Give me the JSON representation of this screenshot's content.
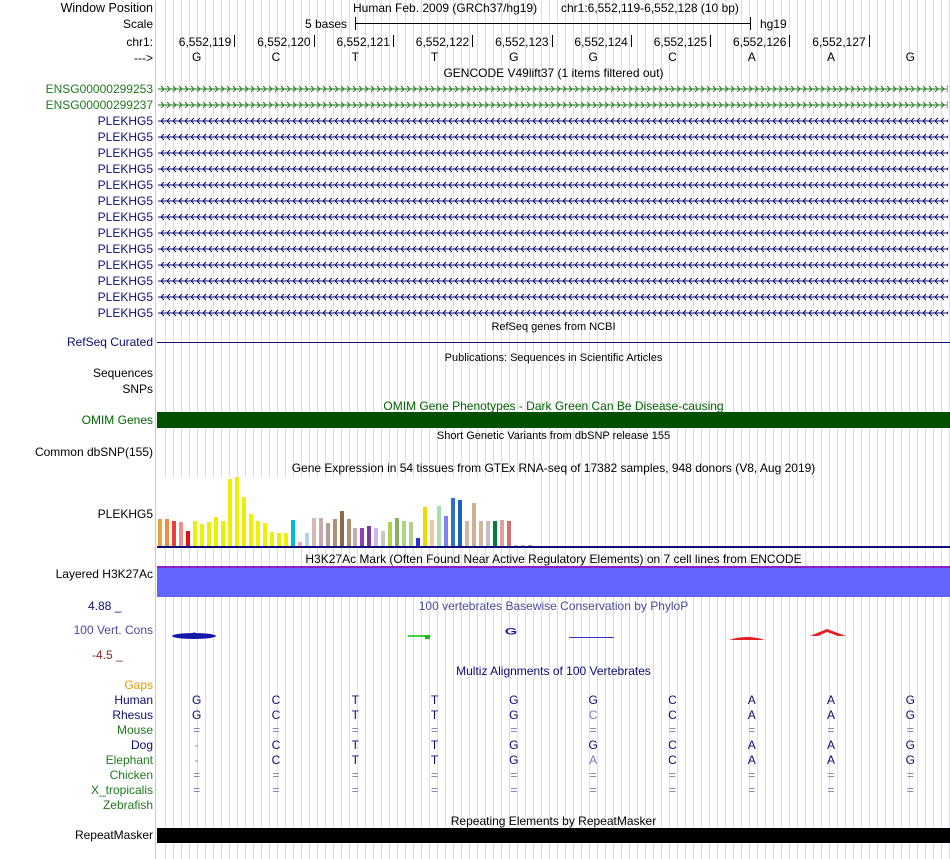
{
  "header": {
    "window_position_label": "Window Position",
    "scale_label": "Scale",
    "chrom_label": "chr1:",
    "strand_label": "--->",
    "assembly_text": "Human Feb. 2009 (GRCh37/hg19)",
    "position_text": "chr1:6,552,119-6,552,128 (10 bp)",
    "scale_text": "5 bases",
    "db": "hg19"
  },
  "ruler": {
    "positions": [
      "6,552,119",
      "6,552,120",
      "6,552,121",
      "6,552,122",
      "6,552,123",
      "6,552,124",
      "6,552,125",
      "6,552,126",
      "6,552,127"
    ],
    "bases": [
      "G",
      "C",
      "T",
      "T",
      "G",
      "G",
      "C",
      "A",
      "A",
      "G"
    ]
  },
  "gencode": {
    "title": "GENCODE V49lift37 (1 items filtered out)",
    "forward_genes": [
      "ENSG00000299253",
      "ENSG00000299237"
    ],
    "reverse_genes": [
      "PLEKHG5",
      "PLEKHG5",
      "PLEKHG5",
      "PLEKHG5",
      "PLEKHG5",
      "PLEKHG5",
      "PLEKHG5",
      "PLEKHG5",
      "PLEKHG5",
      "PLEKHG5",
      "PLEKHG5",
      "PLEKHG5",
      "PLEKHG5"
    ],
    "forward_color": "#1e7b1e",
    "reverse_color": "#0c0c78"
  },
  "refseq": {
    "title": "RefSeq genes from NCBI",
    "label": "RefSeq Curated"
  },
  "publications": {
    "title": "Publications: Sequences in Scientific Articles",
    "labels": [
      "Sequences",
      "SNPs"
    ]
  },
  "omim": {
    "title": "OMIM Gene Phenotypes - Dark Green Can Be Disease-causing",
    "label": "OMIM Genes",
    "color": "#005000"
  },
  "dbsnp": {
    "title": "Short Genetic Variants from dbSNP release 155",
    "label": "Common dbSNP(155)"
  },
  "gtex": {
    "title": "Gene Expression in 54 tissues from GTEx RNA-seq of 17382 samples, 948 donors (V8, Aug 2019)",
    "label": "PLEKHG5",
    "bars": [
      {
        "v": 0.38,
        "c": "#f2a23a"
      },
      {
        "v": 0.38,
        "c": "#f58b3c"
      },
      {
        "v": 0.36,
        "c": "#e8413a"
      },
      {
        "v": 0.34,
        "c": "#f28d8d"
      },
      {
        "v": 0.22,
        "c": "#e01010"
      },
      {
        "v": 0.35,
        "c": "#eeee00"
      },
      {
        "v": 0.31,
        "c": "#eeee00"
      },
      {
        "v": 0.34,
        "c": "#eeee00"
      },
      {
        "v": 0.42,
        "c": "#eeee00"
      },
      {
        "v": 0.36,
        "c": "#eeee00"
      },
      {
        "v": 0.95,
        "c": "#eeee00"
      },
      {
        "v": 0.98,
        "c": "#eeee00"
      },
      {
        "v": 0.7,
        "c": "#eeee00"
      },
      {
        "v": 0.46,
        "c": "#eeee00"
      },
      {
        "v": 0.36,
        "c": "#eeee00"
      },
      {
        "v": 0.33,
        "c": "#eeee00"
      },
      {
        "v": 0.2,
        "c": "#eeee00"
      },
      {
        "v": 0.19,
        "c": "#eeee00"
      },
      {
        "v": 0.18,
        "c": "#eeee00"
      },
      {
        "v": 0.37,
        "c": "#00bcd4"
      },
      {
        "v": 0.06,
        "c": "#f2a0cc"
      },
      {
        "v": 0.18,
        "c": "#b0d4f0"
      },
      {
        "v": 0.4,
        "c": "#d8b8b0"
      },
      {
        "v": 0.4,
        "c": "#c8a8b0"
      },
      {
        "v": 0.33,
        "c": "#b0a08c"
      },
      {
        "v": 0.39,
        "c": "#b09070"
      },
      {
        "v": 0.5,
        "c": "#8c6a4a"
      },
      {
        "v": 0.39,
        "c": "#b09070"
      },
      {
        "v": 0.25,
        "c": "#c8a8b0"
      },
      {
        "v": 0.26,
        "c": "#9040b0"
      },
      {
        "v": 0.28,
        "c": "#7a3a9a"
      },
      {
        "v": 0.26,
        "c": "#c8b8e8"
      },
      {
        "v": 0.22,
        "c": "#c8c8c8"
      },
      {
        "v": 0.34,
        "c": "#b0d050"
      },
      {
        "v": 0.4,
        "c": "#88b060"
      },
      {
        "v": 0.36,
        "c": "#a8d880"
      },
      {
        "v": 0.34,
        "c": "#b0d090"
      },
      {
        "v": 0.12,
        "c": "#3030e0"
      },
      {
        "v": 0.56,
        "c": "#f0d800"
      },
      {
        "v": 0.37,
        "c": "#f0c8a8"
      },
      {
        "v": 0.57,
        "c": "#a8e0a8"
      },
      {
        "v": 0.43,
        "c": "#8080f0"
      },
      {
        "v": 0.68,
        "c": "#3070d0"
      },
      {
        "v": 0.66,
        "c": "#2060c0"
      },
      {
        "v": 0.36,
        "c": "#d0b8a0"
      },
      {
        "v": 0.62,
        "c": "#d0b090"
      },
      {
        "v": 0.35,
        "c": "#d0b8a0"
      },
      {
        "v": 0.36,
        "c": "#c0c0c0"
      },
      {
        "v": 0.36,
        "c": "#008040"
      },
      {
        "v": 0.37,
        "c": "#e0a0a0"
      },
      {
        "v": 0.36,
        "c": "#d07070"
      },
      {
        "v": 0.02,
        "c": "#b0d090"
      },
      {
        "v": 0.01,
        "c": "#d0b090"
      },
      {
        "v": 0.01,
        "c": "#a0a0a0"
      }
    ]
  },
  "h3k27ac": {
    "title": "H3K27Ac Mark (Often Found Near Active Regulatory Elements) on 7 cell lines from ENCODE",
    "label": "Layered H3K27Ac",
    "color": "#6464ff"
  },
  "phylop": {
    "title": "100 vertebrates Basewise Conservation by PhyloP",
    "label": "100 Vert. Cons",
    "max_label": "4.88 _",
    "min_label": "-4.5 _"
  },
  "multiz": {
    "title": "Multiz Alignments of 100 Vertebrates",
    "gaps_label": "Gaps",
    "species": [
      {
        "name": "Human",
        "color": "#0c0c78",
        "seq": [
          "G",
          "C",
          "T",
          "T",
          "G",
          "G",
          "C",
          "A",
          "A",
          "G"
        ]
      },
      {
        "name": "Rhesus",
        "color": "#0c0c78",
        "seq": [
          "G",
          "C",
          "T",
          "T",
          "G",
          "C",
          "C",
          "A",
          "A",
          "G"
        ]
      },
      {
        "name": "Mouse",
        "color": "#1e7b1e",
        "seq": [
          "=",
          "=",
          "=",
          "=",
          "=",
          "=",
          "=",
          "=",
          "=",
          "="
        ]
      },
      {
        "name": "Dog",
        "color": "#0c0c78",
        "seq": [
          "-",
          "C",
          "T",
          "T",
          "G",
          "G",
          "C",
          "A",
          "A",
          "G"
        ]
      },
      {
        "name": "Elephant",
        "color": "#1e7b1e",
        "seq": [
          "-",
          "C",
          "T",
          "T",
          "G",
          "A",
          "C",
          "A",
          "A",
          "G"
        ]
      },
      {
        "name": "Chicken",
        "color": "#1e7b1e",
        "seq": [
          "=",
          "=",
          "=",
          "=",
          "=",
          "=",
          "=",
          "=",
          "=",
          "="
        ]
      },
      {
        "name": "X_tropicalis",
        "color": "#1e7b1e",
        "seq": [
          "=",
          "=",
          "=",
          "=",
          "=",
          "=",
          "=",
          "=",
          "=",
          "="
        ]
      },
      {
        "name": "Zebrafish",
        "color": "#1e7b1e",
        "seq": []
      }
    ]
  },
  "repeatmasker": {
    "title": "Repeating Elements by RepeatMasker",
    "label": "RepeatMasker"
  }
}
